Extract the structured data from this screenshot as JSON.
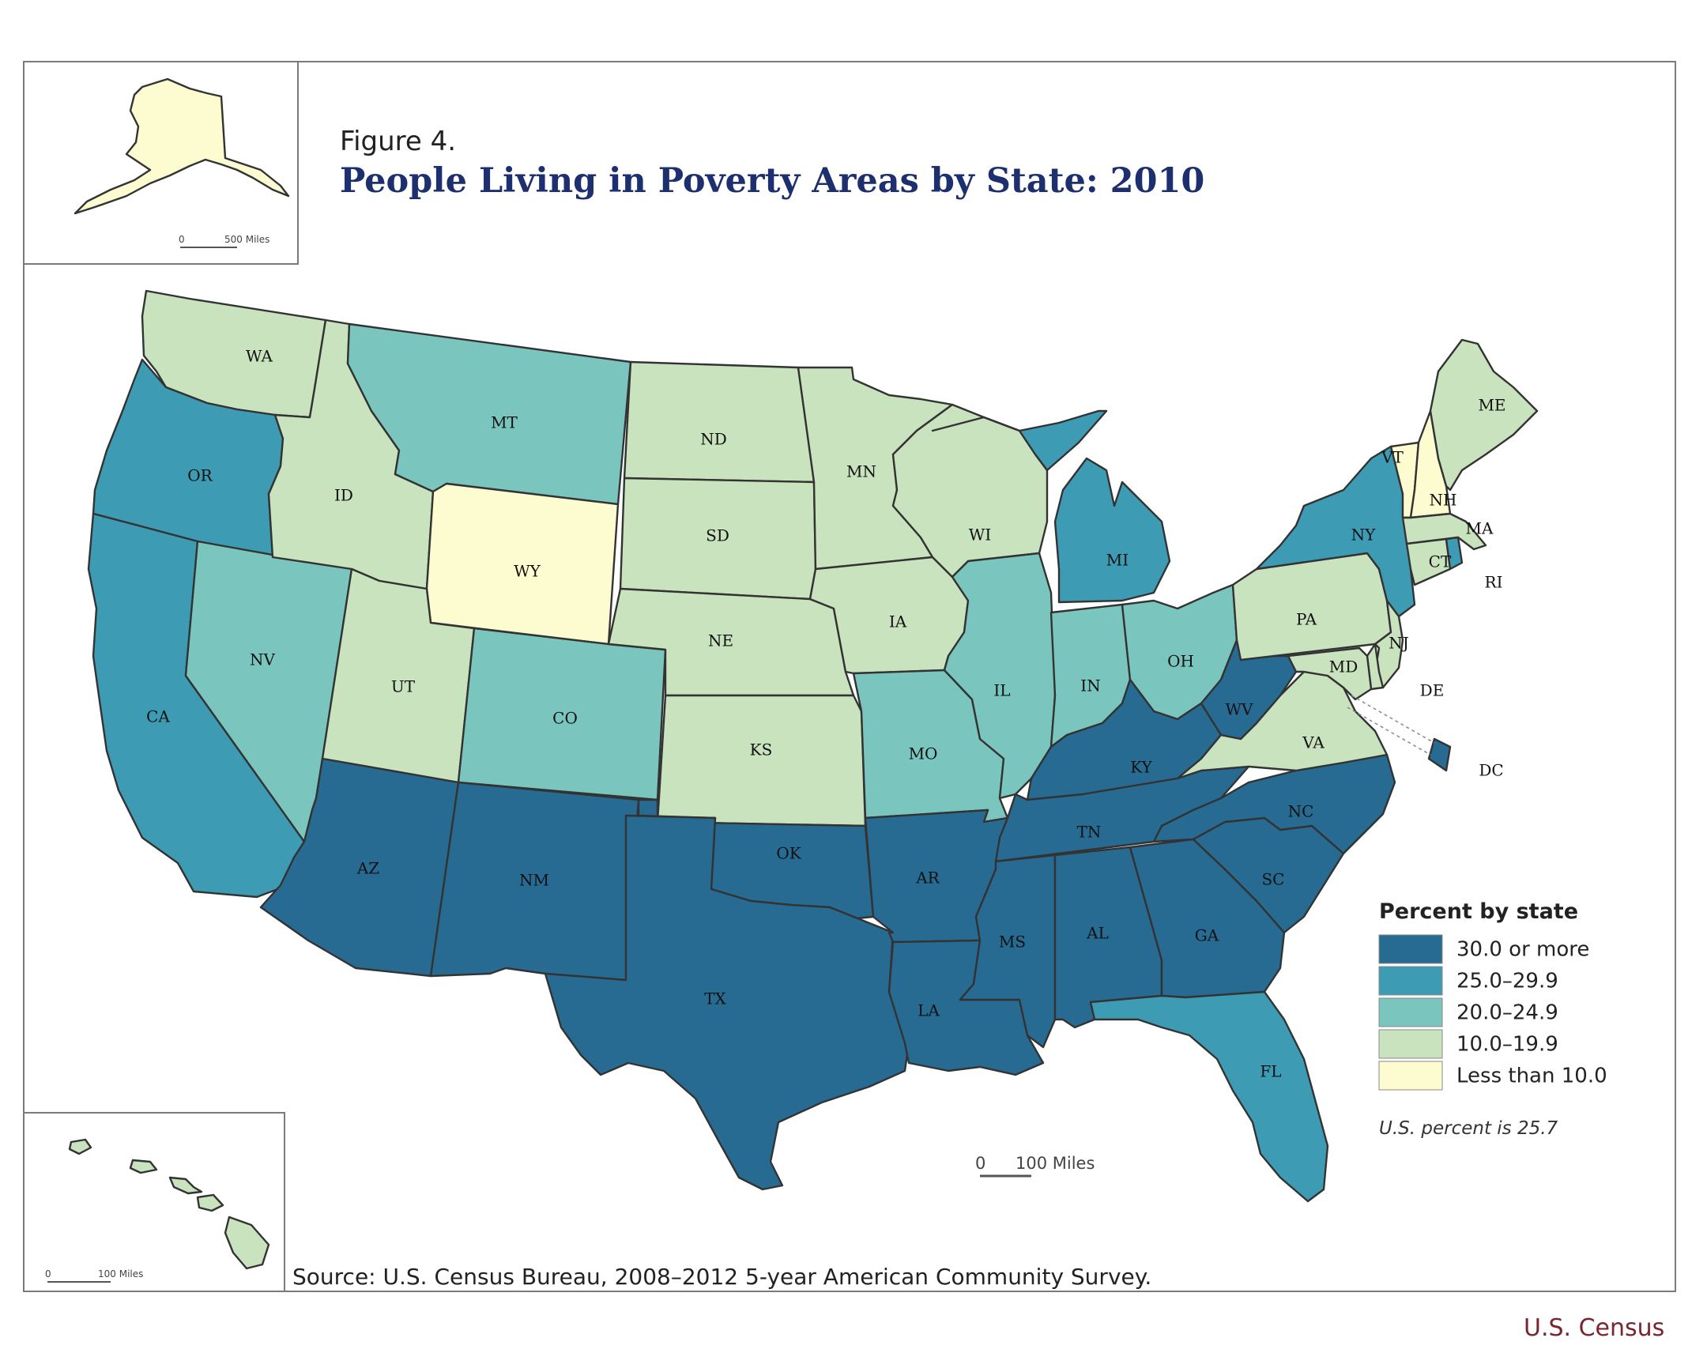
{
  "figure": {
    "number": "Figure 4.",
    "title": "People Living in Poverty Areas by State: 2010"
  },
  "legend": {
    "title": "Percent by state",
    "classes": [
      {
        "label": "30.0 or more",
        "color": "#276b93"
      },
      {
        "label": "25.0–29.9",
        "color": "#3d9cb3"
      },
      {
        "label": "20.0–24.9",
        "color": "#7ac6bf"
      },
      {
        "label": "10.0–19.9",
        "color": "#c8e3bd"
      },
      {
        "label": "Less than 10.0",
        "color": "#fdfbd0"
      }
    ],
    "note": "U.S. percent is 25.7"
  },
  "states": [
    {
      "abbr": "WA",
      "class": 3
    },
    {
      "abbr": "OR",
      "class": 1
    },
    {
      "abbr": "CA",
      "class": 1
    },
    {
      "abbr": "NV",
      "class": 2
    },
    {
      "abbr": "ID",
      "class": 3
    },
    {
      "abbr": "MT",
      "class": 2
    },
    {
      "abbr": "WY",
      "class": 4
    },
    {
      "abbr": "UT",
      "class": 3
    },
    {
      "abbr": "CO",
      "class": 2
    },
    {
      "abbr": "AZ",
      "class": 0
    },
    {
      "abbr": "NM",
      "class": 0
    },
    {
      "abbr": "ND",
      "class": 3
    },
    {
      "abbr": "SD",
      "class": 3
    },
    {
      "abbr": "NE",
      "class": 3
    },
    {
      "abbr": "KS",
      "class": 3
    },
    {
      "abbr": "OK",
      "class": 0
    },
    {
      "abbr": "TX",
      "class": 0
    },
    {
      "abbr": "MN",
      "class": 3
    },
    {
      "abbr": "IA",
      "class": 3
    },
    {
      "abbr": "MO",
      "class": 2
    },
    {
      "abbr": "AR",
      "class": 0
    },
    {
      "abbr": "LA",
      "class": 0
    },
    {
      "abbr": "WI",
      "class": 3
    },
    {
      "abbr": "IL",
      "class": 2
    },
    {
      "abbr": "MI",
      "class": 1
    },
    {
      "abbr": "IN",
      "class": 2
    },
    {
      "abbr": "OH",
      "class": 2
    },
    {
      "abbr": "KY",
      "class": 0
    },
    {
      "abbr": "TN",
      "class": 0
    },
    {
      "abbr": "MS",
      "class": 0
    },
    {
      "abbr": "AL",
      "class": 0
    },
    {
      "abbr": "GA",
      "class": 0
    },
    {
      "abbr": "FL",
      "class": 1
    },
    {
      "abbr": "SC",
      "class": 0
    },
    {
      "abbr": "NC",
      "class": 0
    },
    {
      "abbr": "VA",
      "class": 3
    },
    {
      "abbr": "WV",
      "class": 0
    },
    {
      "abbr": "PA",
      "class": 3
    },
    {
      "abbr": "NY",
      "class": 1
    },
    {
      "abbr": "VT",
      "class": 4
    },
    {
      "abbr": "NH",
      "class": 4
    },
    {
      "abbr": "ME",
      "class": 3
    },
    {
      "abbr": "MA",
      "class": 3
    },
    {
      "abbr": "CT",
      "class": 3
    },
    {
      "abbr": "RI",
      "class": 1
    },
    {
      "abbr": "NJ",
      "class": 3
    },
    {
      "abbr": "DE",
      "class": 3
    },
    {
      "abbr": "MD",
      "class": 3
    },
    {
      "abbr": "DC",
      "class": 0
    },
    {
      "abbr": "AK",
      "class": 4
    },
    {
      "abbr": "HI",
      "class": 3
    }
  ],
  "scales": {
    "main": "100 Miles",
    "main_zero": "0",
    "alaska": "500 Miles",
    "alaska_zero": "0",
    "hawaii": "100 Miles",
    "hawaii_zero": "0"
  },
  "source": "Source: U.S. Census Bureau, 2008–2012 5-year American Community Survey.",
  "credit": "U.S. Census"
}
